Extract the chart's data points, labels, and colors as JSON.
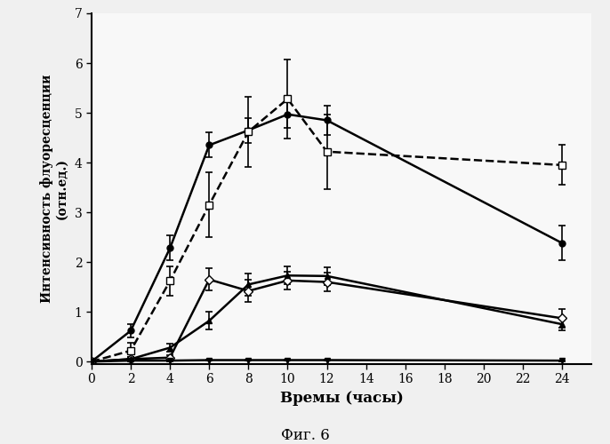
{
  "xlabel": "Времы (часы)",
  "ylabel_line1": "Интенсивность флуоресценции",
  "ylabel_line2": "(отн.ед.)",
  "fig_caption": "Фиг. 6",
  "xlim": [
    0,
    25.5
  ],
  "ylim": [
    -0.05,
    7
  ],
  "xticks": [
    0,
    2,
    4,
    6,
    8,
    10,
    12,
    14,
    16,
    18,
    20,
    22,
    24
  ],
  "yticks": [
    0,
    1,
    2,
    3,
    4,
    5,
    6,
    7
  ],
  "series": [
    {
      "label": "filled_circle",
      "x": [
        0,
        2,
        4,
        6,
        8,
        10,
        12,
        24
      ],
      "y": [
        0.0,
        0.62,
        2.28,
        4.35,
        4.65,
        4.97,
        4.85,
        2.38
      ],
      "yerr": [
        0.04,
        0.13,
        0.25,
        0.25,
        0.25,
        0.28,
        0.3,
        0.35
      ],
      "color": "#000000",
      "linestyle": "-",
      "marker": "o",
      "markerfacecolor": "#000000",
      "markeredgecolor": "#000000",
      "markersize": 5,
      "linewidth": 1.8
    },
    {
      "label": "open_square",
      "x": [
        0,
        2,
        4,
        6,
        8,
        10,
        12,
        24
      ],
      "y": [
        0.0,
        0.22,
        1.62,
        3.15,
        4.62,
        5.28,
        4.22,
        3.95
      ],
      "yerr": [
        0.04,
        0.15,
        0.3,
        0.65,
        0.7,
        0.8,
        0.75,
        0.4
      ],
      "color": "#000000",
      "linestyle": "--",
      "marker": "s",
      "markerfacecolor": "#ffffff",
      "markeredgecolor": "#000000",
      "markersize": 6,
      "linewidth": 1.8
    },
    {
      "label": "open_diamond",
      "x": [
        0,
        2,
        4,
        6,
        8,
        10,
        12,
        24
      ],
      "y": [
        0.0,
        0.05,
        0.08,
        1.65,
        1.42,
        1.63,
        1.6,
        0.87
      ],
      "yerr": [
        0.02,
        0.05,
        0.05,
        0.22,
        0.22,
        0.18,
        0.18,
        0.18
      ],
      "color": "#000000",
      "linestyle": "-",
      "marker": "D",
      "markerfacecolor": "#ffffff",
      "markeredgecolor": "#000000",
      "markersize": 5,
      "linewidth": 1.8
    },
    {
      "label": "filled_triangle_up",
      "x": [
        0,
        2,
        4,
        6,
        8,
        10,
        12,
        24
      ],
      "y": [
        0.0,
        0.05,
        0.28,
        0.82,
        1.55,
        1.73,
        1.72,
        0.75
      ],
      "yerr": [
        0.02,
        0.05,
        0.08,
        0.18,
        0.22,
        0.18,
        0.18,
        0.12
      ],
      "color": "#000000",
      "linestyle": "-",
      "marker": "^",
      "markerfacecolor": "#000000",
      "markeredgecolor": "#000000",
      "markersize": 5,
      "linewidth": 1.8
    },
    {
      "label": "filled_triangle_down",
      "x": [
        0,
        2,
        4,
        6,
        8,
        10,
        12,
        24
      ],
      "y": [
        0.0,
        0.02,
        0.02,
        0.03,
        0.03,
        0.03,
        0.03,
        0.02
      ],
      "yerr": [
        0.01,
        0.01,
        0.01,
        0.01,
        0.01,
        0.01,
        0.01,
        0.01
      ],
      "color": "#000000",
      "linestyle": "-",
      "marker": "v",
      "markerfacecolor": "#000000",
      "markeredgecolor": "#000000",
      "markersize": 5,
      "linewidth": 1.8
    }
  ],
  "background_color": "#f0f0f0",
  "plot_bg_color": "#f8f8f8"
}
